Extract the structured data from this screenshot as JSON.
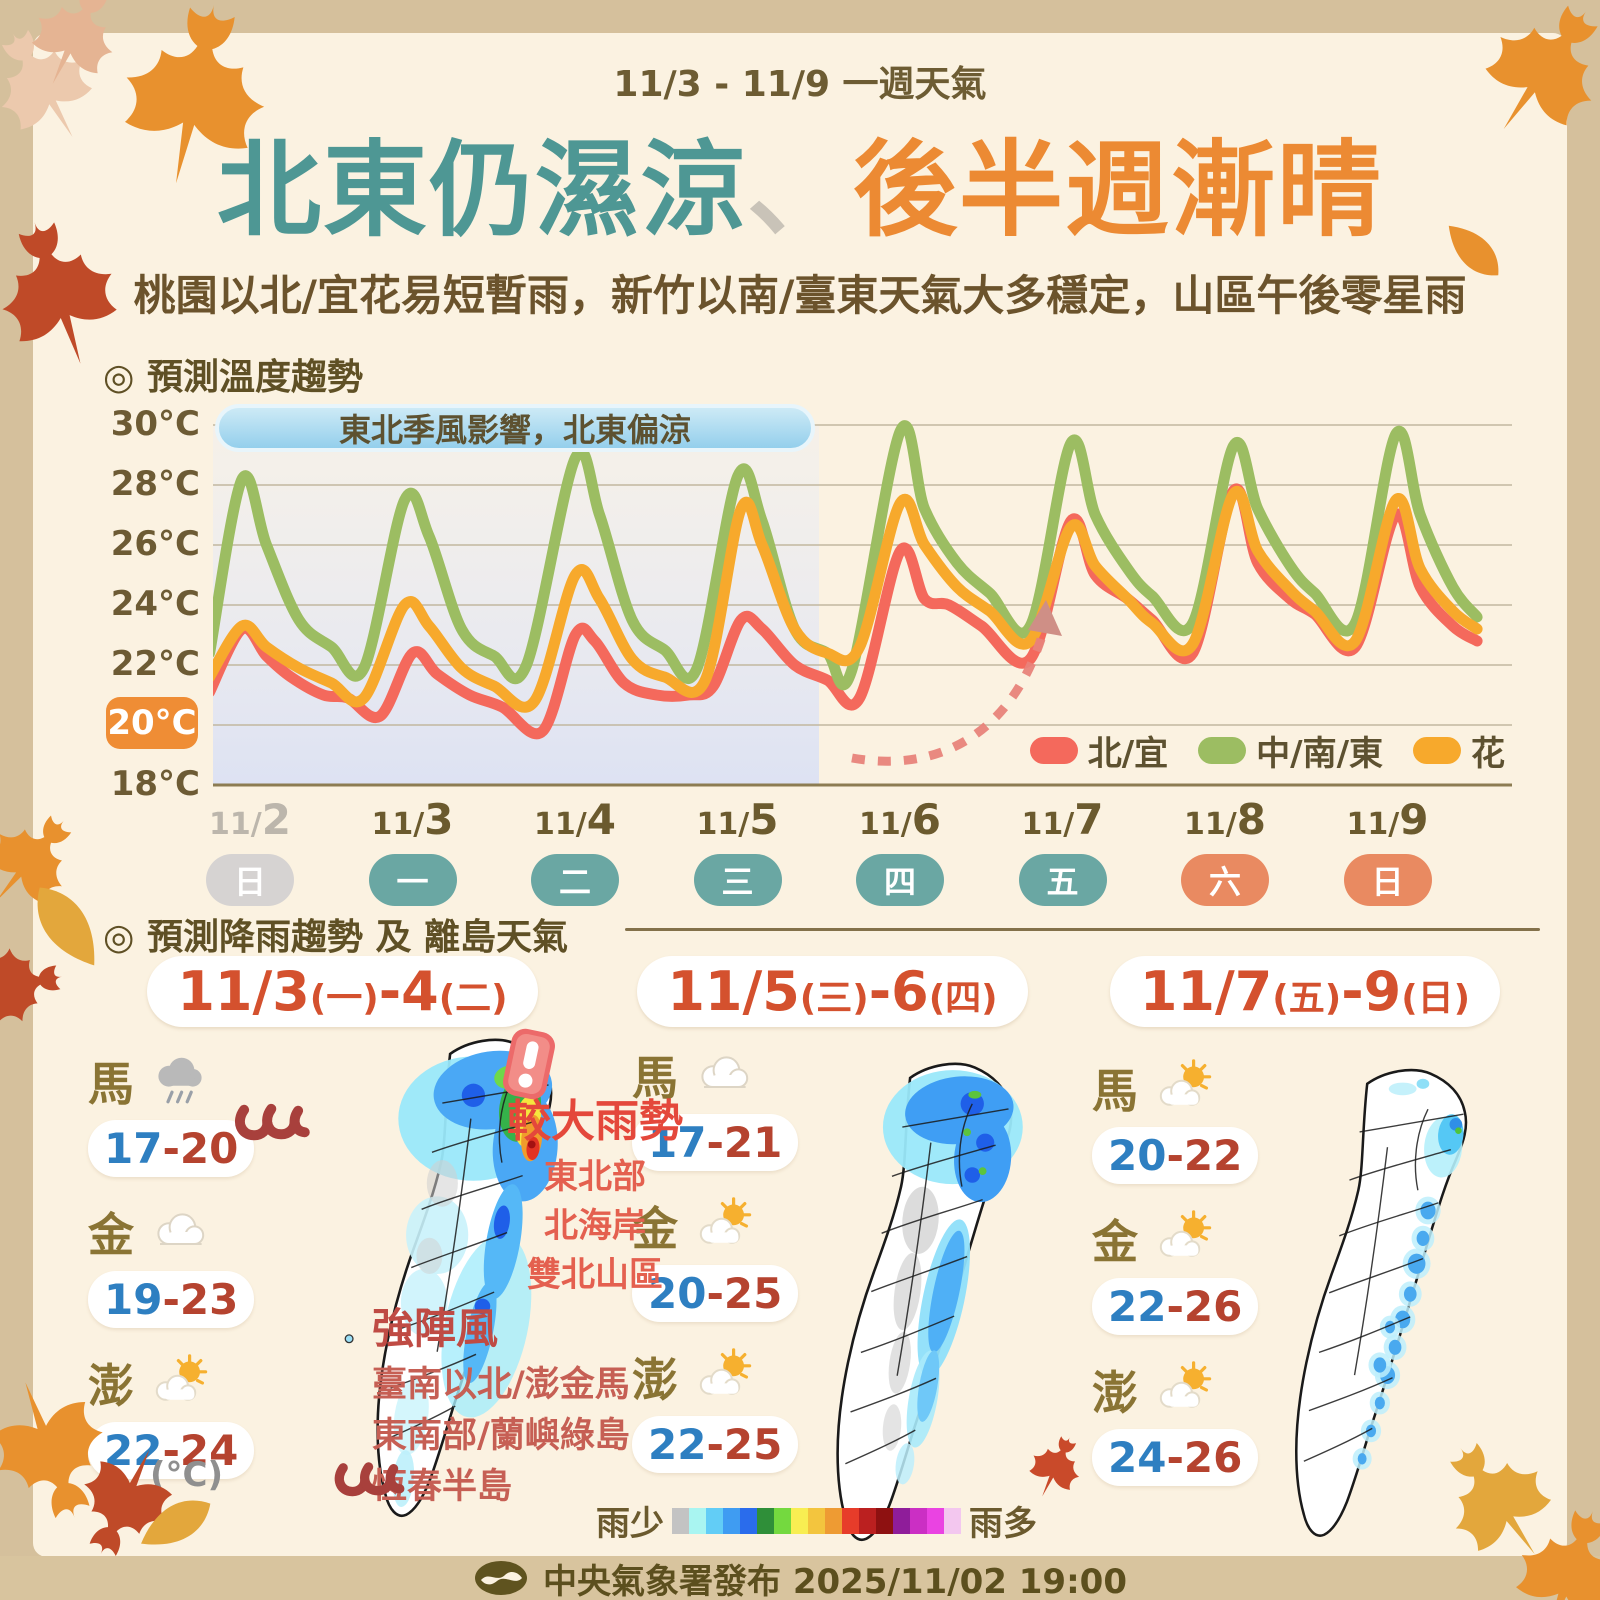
{
  "header": {
    "period": "11/3 - 11/9 一週天氣",
    "headline_parts": [
      {
        "text": "北東仍濕涼",
        "color": "#4e9794"
      },
      {
        "text": "、",
        "color": "#c9c3b8"
      },
      {
        "text": "後半週漸晴",
        "color": "#ec8a33"
      }
    ],
    "subtitle": "桃園以北/宜花易短暫雨，新竹以南/臺東天氣大多穩定，山區午後零星雨"
  },
  "temp_section": {
    "heading": "◎ 預測溫度趨勢",
    "banner": "東北季風影響，北東偏涼",
    "days": [
      {
        "prefix": "11/",
        "num": "2",
        "dow": "日",
        "type": "past"
      },
      {
        "prefix": "11/",
        "num": "3",
        "dow": "一",
        "type": "weekday"
      },
      {
        "prefix": "11/",
        "num": "4",
        "dow": "二",
        "type": "weekday"
      },
      {
        "prefix": "11/",
        "num": "5",
        "dow": "三",
        "type": "weekday"
      },
      {
        "prefix": "11/",
        "num": "6",
        "dow": "四",
        "type": "weekday"
      },
      {
        "prefix": "11/",
        "num": "7",
        "dow": "五",
        "type": "weekday"
      },
      {
        "prefix": "11/",
        "num": "8",
        "dow": "六",
        "type": "weekend"
      },
      {
        "prefix": "11/",
        "num": "9",
        "dow": "日",
        "type": "weekend"
      }
    ],
    "legend": [
      {
        "label": "北/宜",
        "color": "#f4695c"
      },
      {
        "label": "中/南/東",
        "color": "#9cbd62"
      },
      {
        "label": "花",
        "color": "#f7a92c"
      }
    ]
  },
  "chart_data": {
    "type": "line",
    "title": "預測溫度趨勢",
    "unit": "°C",
    "ylim": [
      18,
      30
    ],
    "y_ticks": [
      30,
      28,
      26,
      24,
      22,
      20,
      18
    ],
    "highlight_tick": 20,
    "x_labels": [
      "11/2",
      "11/3",
      "11/4",
      "11/5",
      "11/6",
      "11/7",
      "11/8",
      "11/9"
    ],
    "x_dow": [
      "日",
      "一",
      "二",
      "三",
      "四",
      "五",
      "六",
      "日"
    ],
    "annotation": "東北季風影響，北東偏涼",
    "shaded_period": "11/2-11/5 東北季風影響 (cool, shaded band)",
    "series": [
      {
        "name": "北/宜",
        "color": "#f4695c",
        "points": [
          [
            0.25,
            21.1
          ],
          [
            0.45,
            23.2
          ],
          [
            0.6,
            22.3
          ],
          [
            0.75,
            21.6
          ],
          [
            0.95,
            21.0
          ],
          [
            1.1,
            20.9
          ],
          [
            1.3,
            20.3
          ],
          [
            1.5,
            22.4
          ],
          [
            1.65,
            21.7
          ],
          [
            1.85,
            21.0
          ],
          [
            2.05,
            20.6
          ],
          [
            2.3,
            19.8
          ],
          [
            2.5,
            23.0
          ],
          [
            2.62,
            22.8
          ],
          [
            2.8,
            21.4
          ],
          [
            3.0,
            21.0
          ],
          [
            3.2,
            21.0
          ],
          [
            3.35,
            21.3
          ],
          [
            3.52,
            23.5
          ],
          [
            3.65,
            23.2
          ],
          [
            3.85,
            22.0
          ],
          [
            4.05,
            21.5
          ],
          [
            4.25,
            20.9
          ],
          [
            4.5,
            25.8
          ],
          [
            4.65,
            24.2
          ],
          [
            4.8,
            24.0
          ],
          [
            5.0,
            23.3
          ],
          [
            5.3,
            22.2
          ],
          [
            5.55,
            26.8
          ],
          [
            5.7,
            25.0
          ],
          [
            5.9,
            24.2
          ],
          [
            6.05,
            23.5
          ],
          [
            6.3,
            22.4
          ],
          [
            6.55,
            27.8
          ],
          [
            6.7,
            25.4
          ],
          [
            6.9,
            24.2
          ],
          [
            7.05,
            23.7
          ],
          [
            7.3,
            22.6
          ],
          [
            7.55,
            27.0
          ],
          [
            7.7,
            24.6
          ],
          [
            7.9,
            23.3
          ],
          [
            8.05,
            22.8
          ]
        ]
      },
      {
        "name": "中/南/東",
        "color": "#9cbd62",
        "points": [
          [
            0.25,
            22.4
          ],
          [
            0.45,
            28.2
          ],
          [
            0.6,
            26.0
          ],
          [
            0.8,
            23.5
          ],
          [
            1.0,
            22.6
          ],
          [
            1.2,
            21.9
          ],
          [
            1.45,
            27.5
          ],
          [
            1.6,
            26.3
          ],
          [
            1.8,
            23.2
          ],
          [
            2.0,
            22.3
          ],
          [
            2.2,
            22.0
          ],
          [
            2.5,
            28.9
          ],
          [
            2.65,
            27.0
          ],
          [
            2.85,
            23.5
          ],
          [
            3.05,
            22.5
          ],
          [
            3.25,
            21.9
          ],
          [
            3.5,
            28.3
          ],
          [
            3.65,
            26.8
          ],
          [
            3.85,
            23.2
          ],
          [
            4.05,
            22.4
          ],
          [
            4.2,
            21.8
          ],
          [
            4.5,
            29.8
          ],
          [
            4.65,
            27.2
          ],
          [
            4.85,
            25.4
          ],
          [
            5.05,
            24.4
          ],
          [
            5.3,
            23.3
          ],
          [
            5.55,
            29.4
          ],
          [
            5.7,
            27.0
          ],
          [
            5.9,
            25.2
          ],
          [
            6.05,
            24.3
          ],
          [
            6.3,
            23.4
          ],
          [
            6.55,
            29.3
          ],
          [
            6.7,
            27.2
          ],
          [
            6.9,
            25.3
          ],
          [
            7.05,
            24.4
          ],
          [
            7.3,
            23.4
          ],
          [
            7.55,
            29.7
          ],
          [
            7.7,
            27.0
          ],
          [
            7.9,
            24.6
          ],
          [
            8.05,
            23.6
          ]
        ]
      },
      {
        "name": "花",
        "color": "#f7a92c",
        "points": [
          [
            0.25,
            21.6
          ],
          [
            0.45,
            23.3
          ],
          [
            0.6,
            22.6
          ],
          [
            0.8,
            21.9
          ],
          [
            1.0,
            21.4
          ],
          [
            1.2,
            20.9
          ],
          [
            1.45,
            24.0
          ],
          [
            1.6,
            23.3
          ],
          [
            1.8,
            21.9
          ],
          [
            2.0,
            21.3
          ],
          [
            2.25,
            20.8
          ],
          [
            2.5,
            25.0
          ],
          [
            2.65,
            24.2
          ],
          [
            2.85,
            22.2
          ],
          [
            3.05,
            21.6
          ],
          [
            3.3,
            21.5
          ],
          [
            3.52,
            27.2
          ],
          [
            3.65,
            26.0
          ],
          [
            3.85,
            23.2
          ],
          [
            4.05,
            22.4
          ],
          [
            4.25,
            22.6
          ],
          [
            4.5,
            27.4
          ],
          [
            4.65,
            26.0
          ],
          [
            4.85,
            24.6
          ],
          [
            5.05,
            23.8
          ],
          [
            5.3,
            22.8
          ],
          [
            5.55,
            26.6
          ],
          [
            5.7,
            25.3
          ],
          [
            5.9,
            24.2
          ],
          [
            6.05,
            23.4
          ],
          [
            6.3,
            22.7
          ],
          [
            6.55,
            27.7
          ],
          [
            6.7,
            25.8
          ],
          [
            6.9,
            24.5
          ],
          [
            7.05,
            23.8
          ],
          [
            7.3,
            22.8
          ],
          [
            7.55,
            27.5
          ],
          [
            7.7,
            25.2
          ],
          [
            7.9,
            23.8
          ],
          [
            8.05,
            23.2
          ]
        ]
      }
    ]
  },
  "rain_section": {
    "heading": "◎ 預測降雨趨勢 及 離島天氣",
    "panels": [
      {
        "title_parts": [
          {
            "t": "11/3",
            "big": true
          },
          {
            "t": "(一)",
            "big": false
          },
          {
            "t": "-4",
            "big": true
          },
          {
            "t": "(二)",
            "big": false
          }
        ],
        "islands": [
          {
            "name": "馬",
            "icon": "rainy",
            "low": "17",
            "dash": "-",
            "high": "20"
          },
          {
            "name": "金",
            "icon": "cloudy",
            "low": "19",
            "dash": "-",
            "high": "23"
          },
          {
            "name": "澎",
            "icon": "partly-sunny",
            "low": "22",
            "dash": "-",
            "high": "24"
          }
        ],
        "unit_note": "(°C)",
        "alert": {
          "title": "較大雨勢",
          "lines": [
            "東北部",
            "北海岸",
            "雙北山區"
          ]
        },
        "wind": {
          "title": "強陣風",
          "lines": [
            "臺南以北/澎金馬",
            "東南部/蘭嶼綠島",
            "恆春半島"
          ]
        }
      },
      {
        "title_parts": [
          {
            "t": "11/5",
            "big": true
          },
          {
            "t": "(三)",
            "big": false
          },
          {
            "t": "-6",
            "big": true
          },
          {
            "t": "(四)",
            "big": false
          }
        ],
        "islands": [
          {
            "name": "馬",
            "icon": "cloudy",
            "low": "17",
            "dash": "-",
            "high": "21"
          },
          {
            "name": "金",
            "icon": "partly-sunny",
            "low": "20",
            "dash": "-",
            "high": "25"
          },
          {
            "name": "澎",
            "icon": "partly-sunny",
            "low": "22",
            "dash": "-",
            "high": "25"
          }
        ]
      },
      {
        "title_parts": [
          {
            "t": "11/7",
            "big": true
          },
          {
            "t": "(五)",
            "big": false
          },
          {
            "t": "-9",
            "big": true
          },
          {
            "t": "(日)",
            "big": false
          }
        ],
        "islands": [
          {
            "name": "馬",
            "icon": "partly-sunny",
            "low": "20",
            "dash": "-",
            "high": "22"
          },
          {
            "name": "金",
            "icon": "partly-sunny",
            "low": "22",
            "dash": "-",
            "high": "26"
          },
          {
            "name": "澎",
            "icon": "partly-sunny",
            "low": "24",
            "dash": "-",
            "high": "26"
          }
        ]
      }
    ],
    "legend": {
      "less": "雨少",
      "more": "雨多",
      "colors": [
        "#c3c3c3",
        "#a9f5f1",
        "#62cdf6",
        "#3f9cf2",
        "#2a6cec",
        "#2f8f39",
        "#74d93f",
        "#f8ee52",
        "#f3c53e",
        "#ee9b33",
        "#e73c2a",
        "#bb2020",
        "#8e1111",
        "#8f1d9a",
        "#cb2fc4",
        "#ea43e2",
        "#f3c7ef"
      ]
    }
  },
  "footer": {
    "text": "中央氣象署發布 2025/11/02  19:00"
  }
}
